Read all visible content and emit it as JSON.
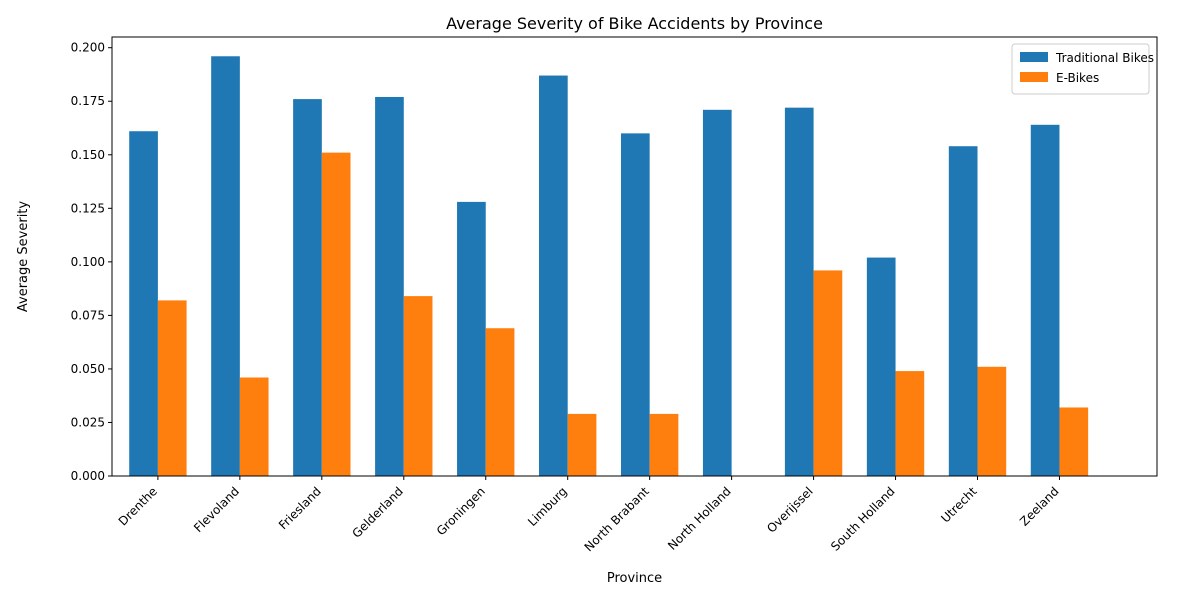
{
  "chart_data": {
    "type": "bar",
    "title": "Average Severity of Bike Accidents by Province",
    "xlabel": "Province",
    "ylabel": "Average Severity",
    "categories": [
      "Drenthe",
      "Flevoland",
      "Friesland",
      "Gelderland",
      "Groningen",
      "Limburg",
      "North Brabant",
      "North Holland",
      "Overijssel",
      "South Holland",
      "Utrecht",
      "Zeeland"
    ],
    "series": [
      {
        "name": "Traditional Bikes",
        "color": "#1f77b4",
        "values": [
          0.161,
          0.196,
          0.176,
          0.177,
          0.128,
          0.187,
          0.16,
          0.171,
          0.172,
          0.102,
          0.154,
          0.164
        ]
      },
      {
        "name": "E-Bikes",
        "color": "#ff7f0e",
        "values": [
          0.082,
          0.046,
          0.151,
          0.084,
          0.069,
          0.029,
          0.029,
          0.0,
          0.096,
          0.049,
          0.051,
          0.032
        ]
      }
    ],
    "ylim": [
      0,
      0.205
    ],
    "yticks": [
      "0.000",
      "0.025",
      "0.050",
      "0.075",
      "0.100",
      "0.125",
      "0.150",
      "0.175",
      "0.200"
    ],
    "grid": false,
    "legend_position": "top-right"
  }
}
